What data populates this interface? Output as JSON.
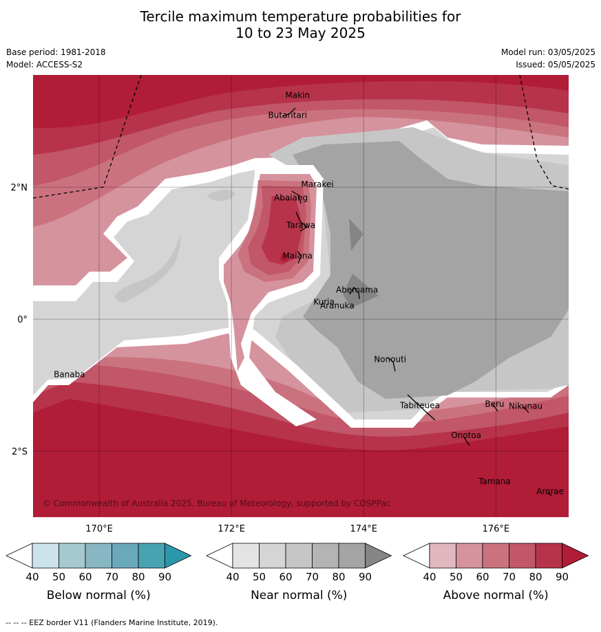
{
  "title": {
    "line1": "Tercile maximum temperature probabilities for",
    "line2": "10 to 23 May 2025"
  },
  "meta": {
    "base_period": "Base period: 1981-2018",
    "model": "Model: ACCESS-S2",
    "model_run": "Model run: 03/05/2025",
    "issued": "Issued: 05/05/2025"
  },
  "map": {
    "lon_range": [
      169.0,
      177.1
    ],
    "lat_range": [
      -3.0,
      3.7
    ],
    "lon_ticks": [
      {
        "value": 170,
        "label": "170°E"
      },
      {
        "value": 172,
        "label": "172°E"
      },
      {
        "value": 174,
        "label": "174°E"
      },
      {
        "value": 176,
        "label": "176°E"
      }
    ],
    "lat_ticks": [
      {
        "value": 2,
        "label": "2°N"
      },
      {
        "value": 0,
        "label": "0°"
      },
      {
        "value": -2,
        "label": "2°S"
      }
    ],
    "places": [
      {
        "name": "Makin",
        "lon": 173.0,
        "lat": 3.35
      },
      {
        "name": "Butaritari",
        "lon": 172.85,
        "lat": 3.05
      },
      {
        "name": "Marakei",
        "lon": 173.3,
        "lat": 2.0
      },
      {
        "name": "Abaiang",
        "lon": 172.9,
        "lat": 1.8
      },
      {
        "name": "Tarawa",
        "lon": 173.05,
        "lat": 1.38
      },
      {
        "name": "Maiana",
        "lon": 173.0,
        "lat": 0.92
      },
      {
        "name": "Abemama",
        "lon": 173.9,
        "lat": 0.4
      },
      {
        "name": "Kuria",
        "lon": 173.4,
        "lat": 0.22
      },
      {
        "name": "Aranuka",
        "lon": 173.6,
        "lat": 0.16
      },
      {
        "name": "Nonouti",
        "lon": 174.4,
        "lat": -0.65
      },
      {
        "name": "Tabiteuea",
        "lon": 174.85,
        "lat": -1.35
      },
      {
        "name": "Beru",
        "lon": 175.98,
        "lat": -1.33
      },
      {
        "name": "Nikunau",
        "lon": 176.45,
        "lat": -1.36
      },
      {
        "name": "Onotoa",
        "lon": 175.55,
        "lat": -1.8
      },
      {
        "name": "Tamana",
        "lon": 175.98,
        "lat": -2.5
      },
      {
        "name": "Arorae",
        "lon": 176.82,
        "lat": -2.65
      },
      {
        "name": "Banaba",
        "lon": 169.55,
        "lat": -0.88
      }
    ],
    "copyright": "© Commonwealth of Australia 2025, Bureau of Meteorology, supported by COSPPac"
  },
  "colorbars": [
    {
      "label": "Below normal (%)",
      "ticks": [
        "40",
        "50",
        "60",
        "70",
        "80",
        "90"
      ],
      "colors": [
        "#ffffff",
        "#cbe3ea",
        "#a6c9d0",
        "#88b7c3",
        "#6aa9ba",
        "#48a2b2",
        "#2b97ab"
      ]
    },
    {
      "label": "Near normal (%)",
      "ticks": [
        "40",
        "50",
        "60",
        "70",
        "80",
        "90"
      ],
      "colors": [
        "#ffffff",
        "#e3e3e3",
        "#d5d5d5",
        "#c6c6c6",
        "#b4b4b4",
        "#a4a4a4",
        "#858585"
      ]
    },
    {
      "label": "Above normal (%)",
      "ticks": [
        "40",
        "50",
        "60",
        "70",
        "80",
        "90"
      ],
      "colors": [
        "#ffffff",
        "#e1b8bf",
        "#d5939d",
        "#cb727f",
        "#c15768",
        "#b73349",
        "#b11c37"
      ]
    }
  ],
  "footer": "--  --  -- EEZ border V11 (Flanders Marine Institute, 2019)."
}
